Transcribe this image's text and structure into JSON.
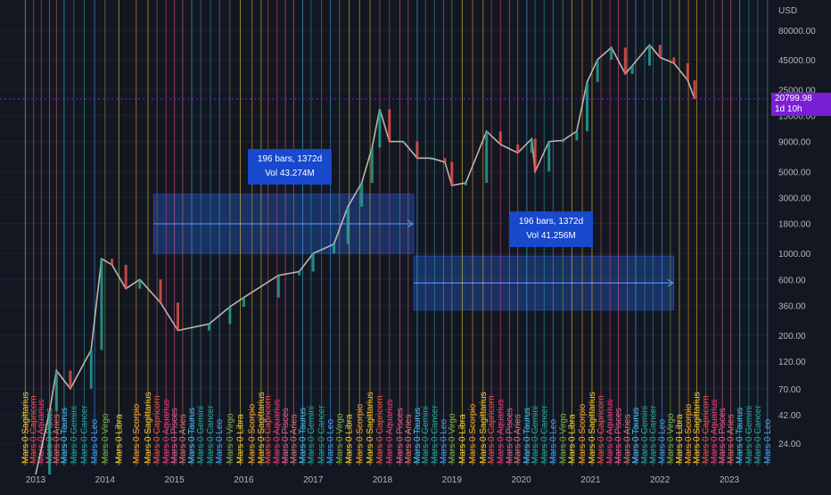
{
  "chart_data": {
    "type": "candlestick",
    "scale": "log",
    "currency": "USD",
    "y_ticks": [
      "80000.00",
      "45000.00",
      "25000.00",
      "15000.00",
      "9000.00",
      "5000.00",
      "3000.00",
      "1800.00",
      "1000.00",
      "600.00",
      "360.00",
      "200.00",
      "120.00",
      "70.00",
      "42.00",
      "24.00"
    ],
    "x_ticks": [
      "2013",
      "2014",
      "2015",
      "2016",
      "2017",
      "2018",
      "2019",
      "2020",
      "2021",
      "2022",
      "2023"
    ],
    "last_price": {
      "value": "20799.98",
      "countdown": "1d 10h"
    },
    "price_series": {
      "dates": [
        2013.0,
        2013.2,
        2013.3,
        2013.5,
        2013.8,
        2013.95,
        2014.1,
        2014.3,
        2014.5,
        2014.8,
        2015.05,
        2015.5,
        2015.8,
        2016.0,
        2016.5,
        2016.8,
        2017.0,
        2017.3,
        2017.5,
        2017.7,
        2017.85,
        2017.96,
        2018.1,
        2018.3,
        2018.5,
        2018.7,
        2018.9,
        2019.0,
        2019.2,
        2019.5,
        2019.7,
        2019.95,
        2020.15,
        2020.2,
        2020.4,
        2020.6,
        2020.8,
        2020.95,
        2021.1,
        2021.3,
        2021.5,
        2021.6,
        2021.85,
        2022.0,
        2022.2,
        2022.4,
        2022.5
      ],
      "close": [
        13,
        45,
        100,
        70,
        150,
        900,
        800,
        500,
        600,
        380,
        220,
        250,
        350,
        420,
        650,
        700,
        1000,
        1200,
        2500,
        4000,
        8000,
        17000,
        9000,
        9000,
        6500,
        6500,
        6000,
        3800,
        4000,
        11000,
        8500,
        7200,
        9500,
        5000,
        9000,
        9200,
        11000,
        29000,
        45000,
        57000,
        34000,
        40000,
        60000,
        47000,
        42000,
        30000,
        20800
      ]
    },
    "measure_boxes": [
      {
        "bars": "196 bars, 1372d",
        "volume": "Vol 43.274M",
        "x_range": [
          2014.7,
          2018.45
        ],
        "y_range": [
          1000,
          3200
        ]
      },
      {
        "bars": "196 bars, 1372d",
        "volume": "Vol 41.256M",
        "x_range": [
          2018.45,
          2022.2
        ],
        "y_range": [
          330,
          950
        ]
      }
    ],
    "mars_transits": [
      {
        "date": 2012.85,
        "sign": "Sagittarius"
      },
      {
        "date": 2012.97,
        "sign": "Capricorn"
      },
      {
        "date": 2013.08,
        "sign": "Aquarius"
      },
      {
        "date": 2013.2,
        "sign": "Pisces"
      },
      {
        "date": 2013.3,
        "sign": "Aries"
      },
      {
        "date": 2013.41,
        "sign": "Taurus"
      },
      {
        "date": 2013.55,
        "sign": "Gemini"
      },
      {
        "date": 2013.7,
        "sign": "Cancer"
      },
      {
        "date": 2013.85,
        "sign": "Leo"
      },
      {
        "date": 2014.0,
        "sign": "Virgo"
      },
      {
        "date": 2014.2,
        "sign": "Libra"
      },
      {
        "date": 2014.45,
        "sign": "Scorpio"
      },
      {
        "date": 2014.62,
        "sign": "Sagittarius"
      },
      {
        "date": 2014.75,
        "sign": "Capricorn"
      },
      {
        "date": 2014.88,
        "sign": "Aquarius"
      },
      {
        "date": 2015.0,
        "sign": "Pisces"
      },
      {
        "date": 2015.12,
        "sign": "Aries"
      },
      {
        "date": 2015.25,
        "sign": "Taurus"
      },
      {
        "date": 2015.38,
        "sign": "Gemini"
      },
      {
        "date": 2015.52,
        "sign": "Cancer"
      },
      {
        "date": 2015.65,
        "sign": "Leo"
      },
      {
        "date": 2015.8,
        "sign": "Virgo"
      },
      {
        "date": 2015.95,
        "sign": "Libra"
      },
      {
        "date": 2016.12,
        "sign": "Scorpio"
      },
      {
        "date": 2016.25,
        "sign": "Sagittarius"
      },
      {
        "date": 2016.35,
        "sign": "Capricorn"
      },
      {
        "date": 2016.48,
        "sign": "Aquarius"
      },
      {
        "date": 2016.6,
        "sign": "Pisces"
      },
      {
        "date": 2016.72,
        "sign": "Aries"
      },
      {
        "date": 2016.85,
        "sign": "Taurus"
      },
      {
        "date": 2016.97,
        "sign": "Gemini"
      },
      {
        "date": 2017.12,
        "sign": "Cancer"
      },
      {
        "date": 2017.25,
        "sign": "Leo"
      },
      {
        "date": 2017.38,
        "sign": "Virgo"
      },
      {
        "date": 2017.52,
        "sign": "Libra"
      },
      {
        "date": 2017.67,
        "sign": "Scorpio"
      },
      {
        "date": 2017.82,
        "sign": "Sagittarius"
      },
      {
        "date": 2017.96,
        "sign": "Capricorn"
      },
      {
        "date": 2018.1,
        "sign": "Aquarius"
      },
      {
        "date": 2018.25,
        "sign": "Pisces"
      },
      {
        "date": 2018.37,
        "sign": "Aries"
      },
      {
        "date": 2018.5,
        "sign": "Taurus"
      },
      {
        "date": 2018.62,
        "sign": "Gemini"
      },
      {
        "date": 2018.75,
        "sign": "Cancer"
      },
      {
        "date": 2018.88,
        "sign": "Leo"
      },
      {
        "date": 2019.0,
        "sign": "Virgo"
      },
      {
        "date": 2019.15,
        "sign": "Libra"
      },
      {
        "date": 2019.3,
        "sign": "Scorpio"
      },
      {
        "date": 2019.45,
        "sign": "Sagittarius"
      },
      {
        "date": 2019.57,
        "sign": "Capricorn"
      },
      {
        "date": 2019.7,
        "sign": "Aquarius"
      },
      {
        "date": 2019.83,
        "sign": "Pisces"
      },
      {
        "date": 2019.95,
        "sign": "Aries"
      },
      {
        "date": 2020.08,
        "sign": "Taurus"
      },
      {
        "date": 2020.2,
        "sign": "Gemini"
      },
      {
        "date": 2020.33,
        "sign": "Cancer"
      },
      {
        "date": 2020.46,
        "sign": "Leo"
      },
      {
        "date": 2020.6,
        "sign": "Virgo"
      },
      {
        "date": 2020.73,
        "sign": "Libra"
      },
      {
        "date": 2020.88,
        "sign": "Scorpio"
      },
      {
        "date": 2021.02,
        "sign": "Sagittarius"
      },
      {
        "date": 2021.15,
        "sign": "Capricorn"
      },
      {
        "date": 2021.28,
        "sign": "Aquarius"
      },
      {
        "date": 2021.4,
        "sign": "Pisces"
      },
      {
        "date": 2021.53,
        "sign": "Aries"
      },
      {
        "date": 2021.65,
        "sign": "Taurus"
      },
      {
        "date": 2021.78,
        "sign": "Gemini"
      },
      {
        "date": 2021.9,
        "sign": "Cancer"
      },
      {
        "date": 2022.03,
        "sign": "Leo"
      },
      {
        "date": 2022.15,
        "sign": "Virgo"
      },
      {
        "date": 2022.28,
        "sign": "Libra"
      },
      {
        "date": 2022.41,
        "sign": "Scorpio"
      },
      {
        "date": 2022.53,
        "sign": "Sagittarius"
      },
      {
        "date": 2022.66,
        "sign": "Capricorn"
      },
      {
        "date": 2022.78,
        "sign": "Aquarius"
      },
      {
        "date": 2022.9,
        "sign": "Pisces"
      },
      {
        "date": 2023.02,
        "sign": "Aries"
      },
      {
        "date": 2023.15,
        "sign": "Taurus"
      },
      {
        "date": 2023.28,
        "sign": "Gemini"
      },
      {
        "date": 2023.41,
        "sign": "Cancer"
      },
      {
        "date": 2023.55,
        "sign": "Leo"
      },
      {
        "date": 2023.68,
        "sign": "Libra"
      }
    ],
    "sign_colors": {
      "Aries": "#e57373",
      "Taurus": "#4fc3f7",
      "Gemini": "#26a69a",
      "Cancer": "#26a69a",
      "Leo": "#42a5f5",
      "Virgo": "#7cb342",
      "Libra": "#fdd835",
      "Scorpio": "#ffa726",
      "Sagittarius": "#ffca28",
      "Capricorn": "#ef5350",
      "Aquarius": "#ec407a",
      "Pisces": "#f06292"
    },
    "grid": true
  }
}
